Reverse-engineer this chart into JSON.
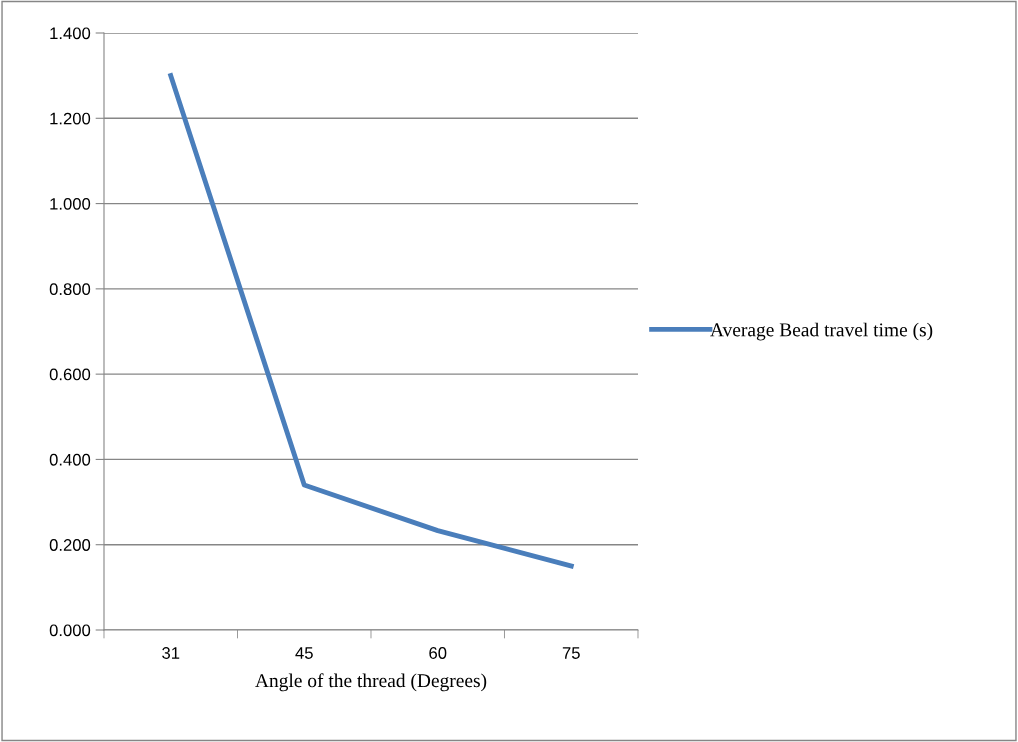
{
  "chart_data": {
    "type": "line",
    "xlabel": "Angle of the thread (Degrees)",
    "categories": [
      "31",
      "45",
      "60",
      "75"
    ],
    "series": [
      {
        "name": "Average Bead travel time (s)",
        "color": "#4a7ebb",
        "values": [
          1.3,
          0.34,
          0.233,
          0.15
        ]
      }
    ],
    "ylim": [
      0,
      1.4
    ],
    "yticks": [
      {
        "value": 0,
        "label": "0.000"
      },
      {
        "value": 0.2,
        "label": "0.200"
      },
      {
        "value": 0.4,
        "label": "0.400"
      },
      {
        "value": 0.6,
        "label": "0.600"
      },
      {
        "value": 0.8,
        "label": "0.800"
      },
      {
        "value": 1.0,
        "label": "1.000"
      },
      {
        "value": 1.2,
        "label": "1.200"
      },
      {
        "value": 1.4,
        "label": "1.400"
      }
    ],
    "grid": "y",
    "legend": "right",
    "marker": "none",
    "line_style": "solid"
  }
}
